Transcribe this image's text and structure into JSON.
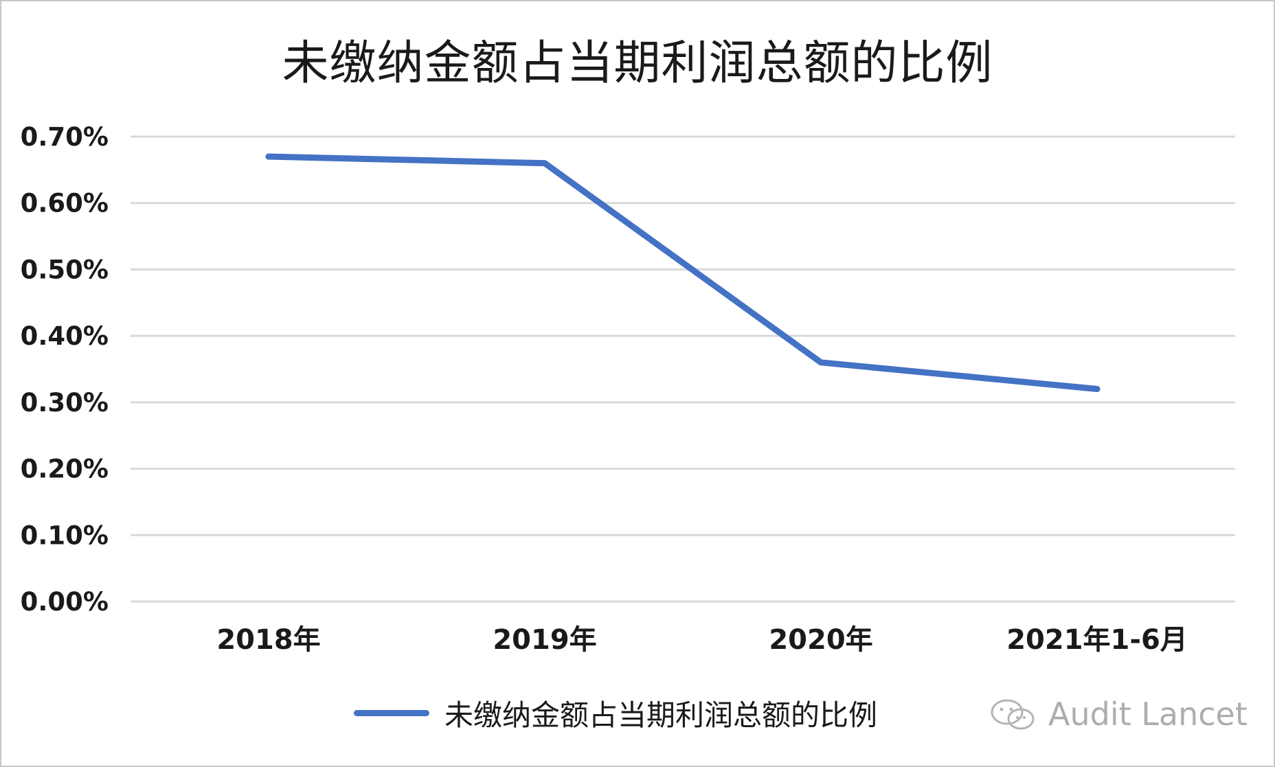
{
  "chart_data": {
    "type": "line",
    "title": "未缴纳金额占当期利润总额的比例",
    "categories": [
      "2018年",
      "2019年",
      "2020年",
      "2021年1-6月"
    ],
    "series": [
      {
        "name": "未缴纳金额占当期利润总额的比例",
        "values": [
          0.67,
          0.66,
          0.36,
          0.32
        ],
        "color": "#4472c4"
      }
    ],
    "ylim": [
      0,
      0.7
    ],
    "yticks": [
      0,
      0.1,
      0.2,
      0.3,
      0.4,
      0.5,
      0.6,
      0.7
    ],
    "ytick_labels": [
      "0.00%",
      "0.10%",
      "0.20%",
      "0.30%",
      "0.40%",
      "0.50%",
      "0.60%",
      "0.70%"
    ],
    "grid": true,
    "legend_position": "bottom"
  },
  "watermark": {
    "text": "Audit Lancet",
    "icon": "wechat-icon"
  }
}
